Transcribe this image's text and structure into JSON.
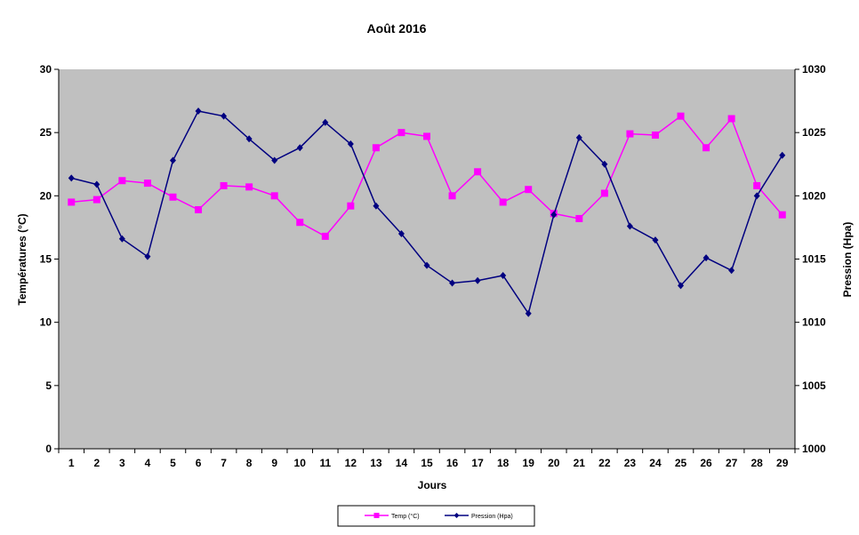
{
  "chart_data": {
    "type": "line",
    "title": "Août 2016",
    "xlabel": "Jours",
    "ylabel_left": "Températures (°C)",
    "ylabel_right": "Pression (Hpa)",
    "x": [
      1,
      2,
      3,
      4,
      5,
      6,
      7,
      8,
      9,
      10,
      11,
      12,
      13,
      14,
      15,
      16,
      17,
      18,
      19,
      20,
      21,
      22,
      23,
      24,
      25,
      26,
      27,
      28,
      29
    ],
    "ylim_left": [
      0,
      30
    ],
    "yticks_left": [
      0,
      5,
      10,
      15,
      20,
      25,
      30
    ],
    "ylim_right": [
      1000,
      1030
    ],
    "yticks_right": [
      1000,
      1005,
      1010,
      1015,
      1020,
      1025,
      1030
    ],
    "grid": false,
    "legend_position": "bottom",
    "plot_background": "#c0c0c0",
    "series": [
      {
        "name": "Temp (°C)",
        "axis": "left",
        "color": "#ff00ff",
        "marker": "square",
        "values": [
          19.5,
          19.7,
          21.2,
          21.0,
          19.9,
          18.9,
          20.8,
          20.7,
          20.0,
          17.9,
          16.8,
          19.2,
          23.8,
          25.0,
          24.7,
          20.0,
          21.9,
          19.5,
          20.5,
          18.6,
          18.2,
          20.2,
          24.9,
          24.8,
          26.3,
          23.8,
          26.1,
          20.8,
          18.5
        ]
      },
      {
        "name": "Pression (Hpa)",
        "axis": "right",
        "color": "#000080",
        "marker": "diamond",
        "values": [
          1021.4,
          1020.9,
          1016.6,
          1015.2,
          1022.8,
          1026.7,
          1026.3,
          1024.5,
          1022.8,
          1023.8,
          1025.8,
          1024.1,
          1019.2,
          1017.0,
          1014.5,
          1013.1,
          1013.3,
          1013.7,
          1010.7,
          1018.5,
          1024.6,
          1022.5,
          1017.6,
          1016.5,
          1012.9,
          1015.1,
          1014.1,
          1020.0,
          1023.2
        ]
      }
    ]
  }
}
